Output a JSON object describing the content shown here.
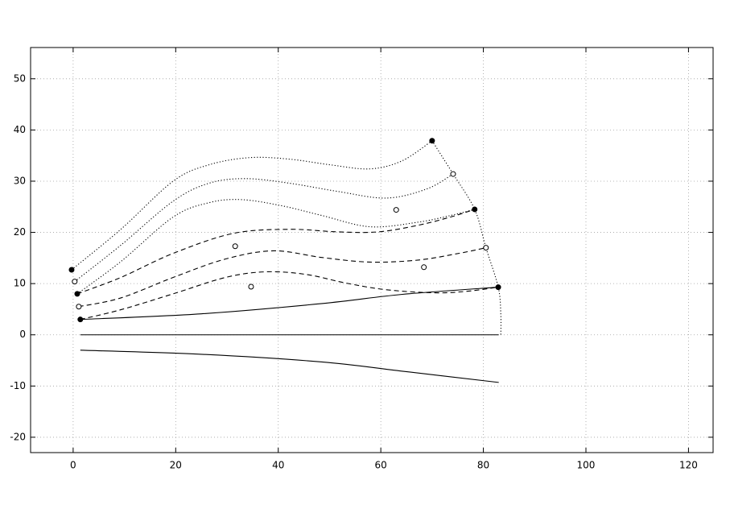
{
  "chart_data": {
    "type": "line",
    "xlim": [
      -8.3,
      124.8
    ],
    "ylim": [
      -23.0,
      56.1
    ],
    "xticks": [
      0,
      20,
      40,
      60,
      80,
      100,
      120
    ],
    "yticks": [
      -20,
      -10,
      0,
      10,
      20,
      30,
      40,
      50
    ],
    "grid": true,
    "series": [
      {
        "style": "dotted",
        "color": "#000000",
        "x": [
          -0.3,
          9.3,
          19.5,
          26.5,
          34.4,
          42.2,
          50.1,
          57.9,
          64.2,
          70.0
        ],
        "values": [
          12.7,
          20.6,
          30.0,
          33.2,
          34.6,
          34.3,
          33.2,
          32.4,
          34.0,
          37.9
        ]
      },
      {
        "style": "dotted",
        "color": "#000000",
        "x": [
          0.3,
          9.3,
          19.5,
          26.5,
          33.6,
          42.2,
          51.6,
          61.1,
          69.0,
          74.1
        ],
        "values": [
          10.4,
          17.5,
          26.1,
          29.6,
          30.5,
          29.6,
          28.0,
          26.7,
          28.5,
          31.4
        ]
      },
      {
        "style": "dotted",
        "color": "#000000",
        "x": [
          0.8,
          9.3,
          19.5,
          26.5,
          32.8,
          40.7,
          48.5,
          57.9,
          67.3,
          73.6,
          78.3
        ],
        "values": [
          8.0,
          14.3,
          23.0,
          25.8,
          26.4,
          25.2,
          23.3,
          21.1,
          22.0,
          23.3,
          24.5
        ]
      },
      {
        "style": "dashed",
        "color": "#000000",
        "x": [
          0.8,
          9.3,
          19.5,
          31.2,
          42.2,
          51.6,
          59.5,
          67.3,
          73.6,
          78.3
        ],
        "values": [
          8.0,
          11.2,
          15.9,
          19.8,
          20.6,
          20.1,
          20.1,
          21.4,
          23.0,
          24.5
        ]
      },
      {
        "style": "dashed",
        "color": "#000000",
        "x": [
          1.1,
          9.3,
          19.5,
          29.7,
          39.1,
          48.5,
          57.9,
          67.3,
          75.2,
          80.5
        ],
        "values": [
          5.5,
          7.2,
          11.2,
          14.8,
          16.4,
          15.1,
          14.2,
          14.6,
          15.9,
          17.0
        ]
      },
      {
        "style": "dashed",
        "color": "#000000",
        "x": [
          1.4,
          9.3,
          19.5,
          29.7,
          37.5,
          45.4,
          53.2,
          61.1,
          70.5,
          76.8,
          82.9
        ],
        "values": [
          3.0,
          4.9,
          8.0,
          11.2,
          12.3,
          11.8,
          10.1,
          8.8,
          8.2,
          8.5,
          9.3
        ]
      },
      {
        "style": "solid",
        "color": "#000000",
        "x": [
          1.4,
          25.0,
          48.5,
          64.2,
          82.9
        ],
        "values": [
          3.0,
          4.1,
          6.1,
          7.9,
          9.3
        ]
      },
      {
        "style": "solid",
        "color": "#000000",
        "x": [
          1.4,
          83.0
        ],
        "values": [
          0,
          0
        ]
      },
      {
        "style": "solid",
        "color": "#000000",
        "x": [
          1.4,
          25.0,
          48.5,
          64.2,
          83.0
        ],
        "values": [
          -3.0,
          -3.8,
          -5.3,
          -7.1,
          -9.3
        ]
      },
      {
        "style": "dotted",
        "color": "#000000",
        "x": [
          70.0,
          74.1,
          78.3,
          80.5,
          82.9,
          83.4,
          83.4
        ],
        "values": [
          37.9,
          31.4,
          24.5,
          17.0,
          9.3,
          4.1,
          0
        ]
      },
      {
        "style": "filled",
        "color": "#000000",
        "x": [
          -0.3,
          0.8,
          1.4,
          70.0,
          78.3,
          82.9
        ],
        "values": [
          12.7,
          8.0,
          3.0,
          37.9,
          24.5,
          9.3
        ]
      },
      {
        "style": "open",
        "color": "#000000",
        "x": [
          0.3,
          1.1,
          31.6,
          34.7,
          63.0,
          68.4,
          74.1,
          80.5
        ],
        "values": [
          10.4,
          5.5,
          17.3,
          9.4,
          24.4,
          13.2,
          31.4,
          17.0
        ]
      }
    ]
  }
}
